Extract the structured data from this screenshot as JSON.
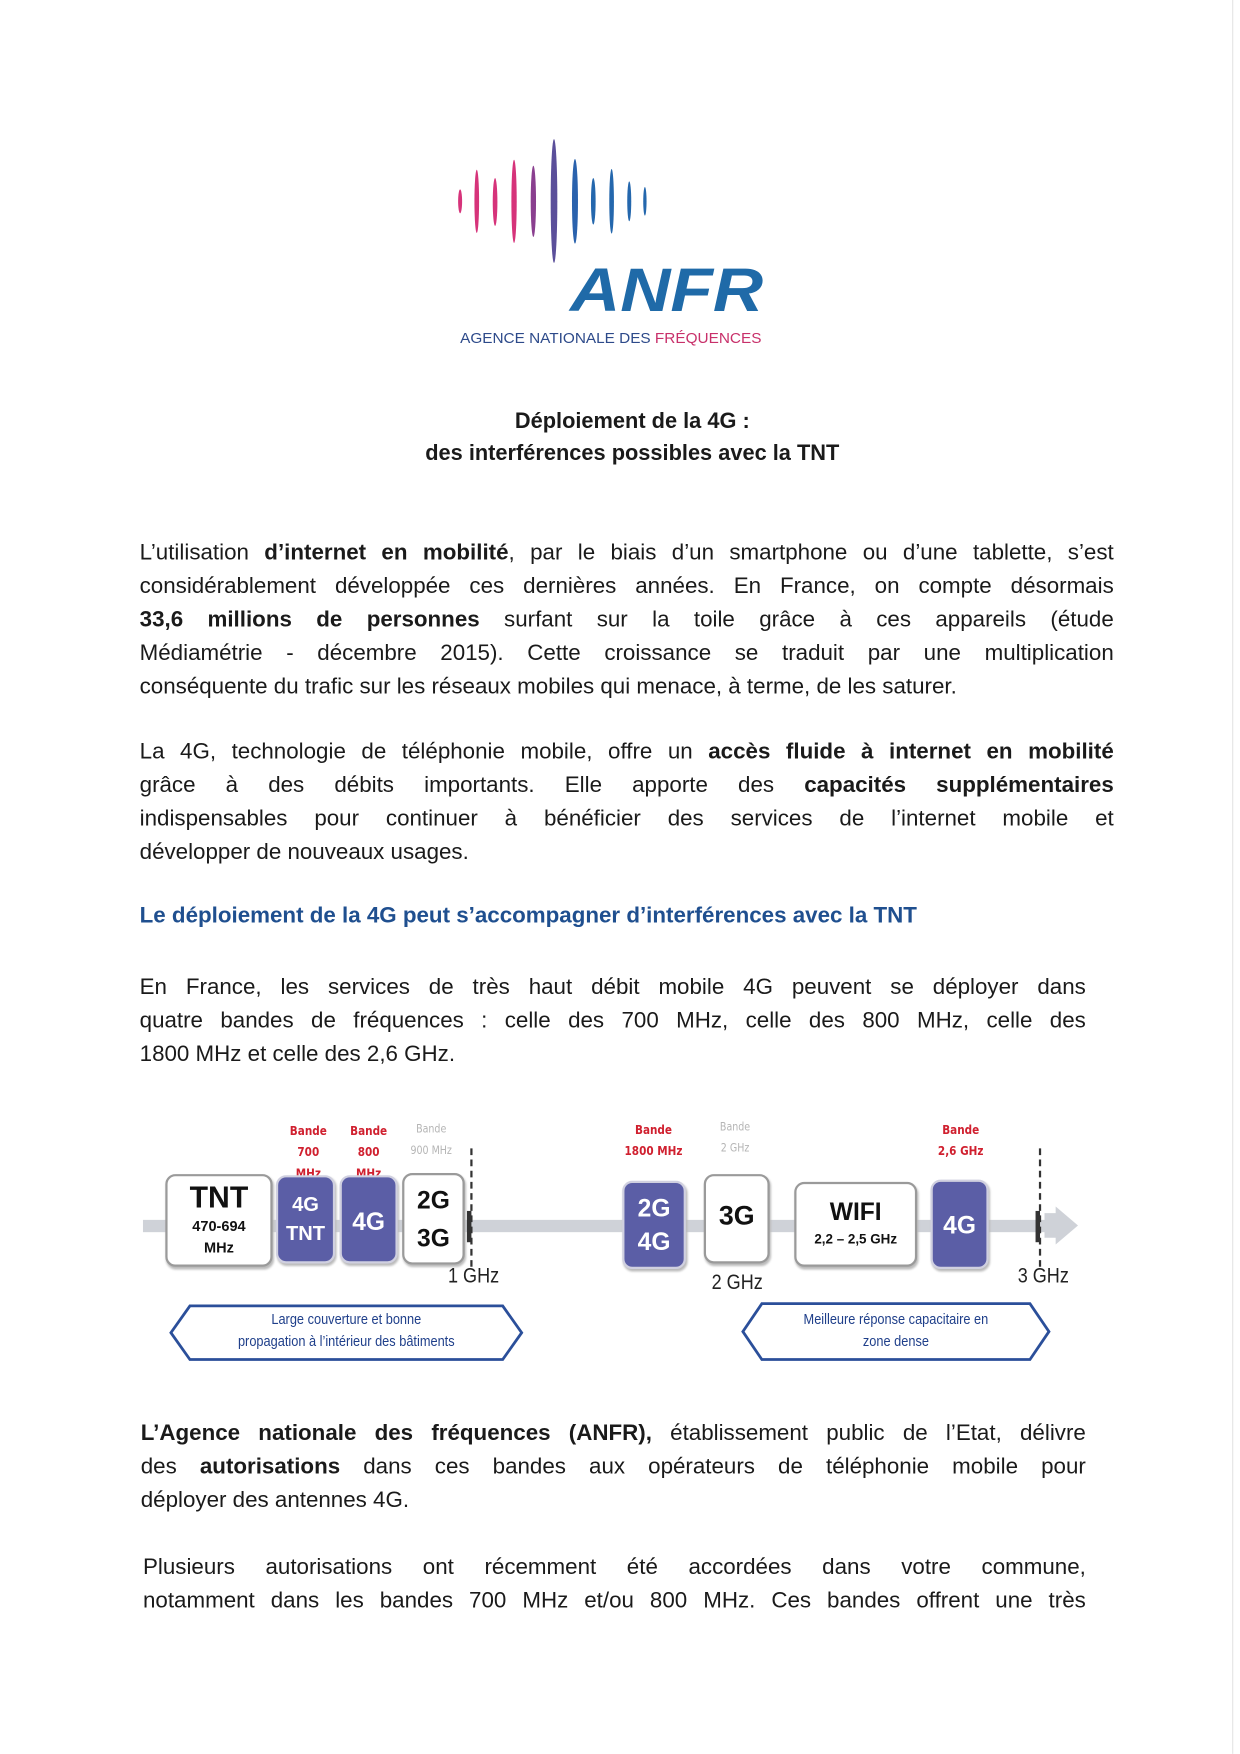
{
  "logo": {
    "name": "ANFR",
    "subtitle_a": "AGENCE NATIONALE DES ",
    "subtitle_b": "FRÉQUENCES",
    "colors": {
      "pink": "#d6337a",
      "purple": "#5b4f9a",
      "blue": "#2467ad"
    }
  },
  "title": {
    "line1": "Déploiement de la 4G :",
    "line2": "des interférences possibles avec la TNT"
  },
  "paragraphs": [
    {
      "lines": [
        [
          {
            "text": "L’utilisation "
          },
          {
            "text": "d’internet en mobilité",
            "bold": true
          },
          {
            "text": ", par le biais d’un smartphone ou d’une tablette, s’est"
          }
        ],
        [
          {
            "text": "considérablement développée ces dernières années. En France, on compte désormais"
          }
        ],
        [
          {
            "text": "33,6 millions de personnes",
            "bold": true
          },
          {
            "text": " surfant sur la toile grâce à ces appareils (étude"
          }
        ],
        [
          {
            "text": "Médiamétrie - décembre 2015). Cette croissance se traduit par une multiplication"
          }
        ],
        [
          {
            "text": "conséquente du trafic sur les réseaux mobiles qui menace, à terme, de les saturer."
          }
        ]
      ]
    },
    {
      "lines": [
        [
          {
            "text": "La 4G, technologie de téléphonie mobile, offre un "
          },
          {
            "text": "accès fluide à internet en mobilité",
            "bold": true
          }
        ],
        [
          {
            "text": "grâce à des débits importants. Elle apporte des "
          },
          {
            "text": "capacités supplémentaires",
            "bold": true
          }
        ],
        [
          {
            "text": "indispensables pour continuer à bénéficier des services de l’internet mobile et"
          }
        ],
        [
          {
            "text": "développer de nouveaux usages."
          }
        ]
      ]
    },
    {
      "lines": [
        [
          {
            "text": "En France, les services de très haut débit mobile 4G peuvent se déployer dans"
          }
        ],
        [
          {
            "text": "quatre bandes de fréquences : celle des 700 MHz, celle des 800 MHz, celle des"
          }
        ],
        [
          {
            "text": "1800 MHz et celle des 2,6 GHz."
          }
        ]
      ]
    },
    {
      "lines": [
        [
          {
            "text": "L’Agence nationale des fréquences (ANFR),",
            "bold": true
          },
          {
            "text": " établissement public de l’Etat, délivre"
          }
        ],
        [
          {
            "text": "des "
          },
          {
            "text": "autorisations",
            "bold": true
          },
          {
            "text": " dans ces bandes aux opérateurs de téléphonie mobile pour"
          }
        ],
        [
          {
            "text": "déployer des antennes 4G."
          }
        ]
      ]
    },
    {
      "lines": [
        [
          {
            "text": "Plusieurs autorisations ont récemment été accordées dans votre commune,"
          }
        ],
        [
          {
            "text": "notamment dans les bandes 700 MHz et/ou 800 MHz. Ces bandes offrent une très"
          }
        ]
      ],
      "continues": true
    }
  ],
  "heading": "Le déploiement de la 4G peut s’accompagner d’interférences avec la TNT",
  "diagram": {
    "bands": {
      "b700": [
        "Bande",
        "700 MHz"
      ],
      "b800": [
        "Bande",
        "800 MHz"
      ],
      "b900": [
        "Bande",
        "900 MHz"
      ],
      "b1800": [
        "Bande",
        "1800 MHz"
      ],
      "b2000": [
        "Bande",
        "2 GHz"
      ],
      "b2600": [
        "Bande",
        "2,6 GHz"
      ]
    },
    "boxes": {
      "tnt": [
        "TNT",
        "470-694",
        "MHz"
      ],
      "g4tnt": [
        "4G",
        "TNT"
      ],
      "g4_800": "4G",
      "g23": [
        "2G",
        "3G"
      ],
      "g24": [
        "2G",
        "4G"
      ],
      "g3": "3G",
      "wifi": [
        "WIFI",
        "2,2 – 2,5 GHz"
      ],
      "g4_2600": "4G"
    },
    "markers": {
      "m1": "1 GHz",
      "m2": "2 GHz",
      "m3": "3 GHz"
    },
    "callouts": {
      "left": [
        "Large couverture et bonne",
        "propagation à l’intérieur des bâtiments"
      ],
      "right": [
        "Meilleure réponse capacitaire en",
        "zone dense"
      ]
    },
    "colors": {
      "band_label": "#d0202f",
      "box_4g": "#5b5ea6",
      "callout": "#1f3f8a"
    }
  }
}
